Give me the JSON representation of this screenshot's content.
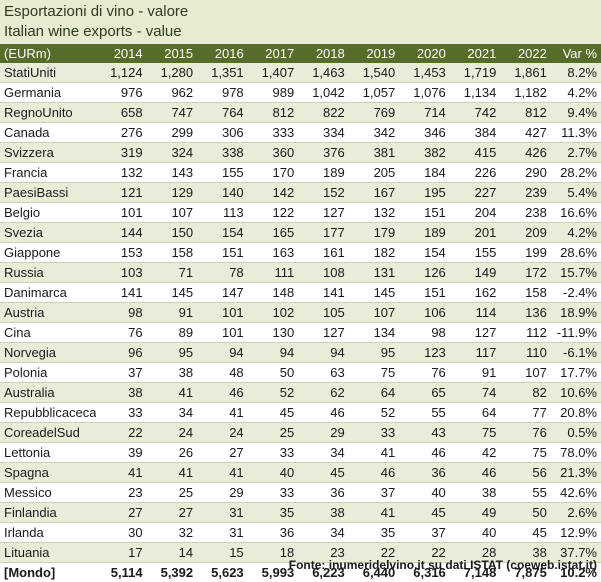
{
  "title": "Esportazioni di vino - valore",
  "subtitle": "Italian wine exports - value",
  "source": "Fonte: inumeridelvino.it su dati ISTAT (coeweb.istat.it)",
  "chart_data": {
    "type": "table",
    "columns": [
      "(EURm)",
      "2014",
      "2015",
      "2016",
      "2017",
      "2018",
      "2019",
      "2020",
      "2021",
      "2022",
      "Var %"
    ],
    "rows": [
      [
        "StatiUniti",
        "1,124",
        "1,280",
        "1,351",
        "1,407",
        "1,463",
        "1,540",
        "1,453",
        "1,719",
        "1,861",
        "8.2%"
      ],
      [
        "Germania",
        "976",
        "962",
        "978",
        "989",
        "1,042",
        "1,057",
        "1,076",
        "1,134",
        "1,182",
        "4.2%"
      ],
      [
        "RegnoUnito",
        "658",
        "747",
        "764",
        "812",
        "822",
        "769",
        "714",
        "742",
        "812",
        "9.4%"
      ],
      [
        "Canada",
        "276",
        "299",
        "306",
        "333",
        "334",
        "342",
        "346",
        "384",
        "427",
        "11.3%"
      ],
      [
        "Svizzera",
        "319",
        "324",
        "338",
        "360",
        "376",
        "381",
        "382",
        "415",
        "426",
        "2.7%"
      ],
      [
        "Francia",
        "132",
        "143",
        "155",
        "170",
        "189",
        "205",
        "184",
        "226",
        "290",
        "28.2%"
      ],
      [
        "PaesiBassi",
        "121",
        "129",
        "140",
        "142",
        "152",
        "167",
        "195",
        "227",
        "239",
        "5.4%"
      ],
      [
        "Belgio",
        "101",
        "107",
        "113",
        "122",
        "127",
        "132",
        "151",
        "204",
        "238",
        "16.6%"
      ],
      [
        "Svezia",
        "144",
        "150",
        "154",
        "165",
        "177",
        "179",
        "189",
        "201",
        "209",
        "4.2%"
      ],
      [
        "Giappone",
        "153",
        "158",
        "151",
        "163",
        "161",
        "182",
        "154",
        "155",
        "199",
        "28.6%"
      ],
      [
        "Russia",
        "103",
        "71",
        "78",
        "111",
        "108",
        "131",
        "126",
        "149",
        "172",
        "15.7%"
      ],
      [
        "Danimarca",
        "141",
        "145",
        "147",
        "148",
        "141",
        "145",
        "151",
        "162",
        "158",
        "-2.4%"
      ],
      [
        "Austria",
        "98",
        "91",
        "101",
        "102",
        "105",
        "107",
        "106",
        "114",
        "136",
        "18.9%"
      ],
      [
        "Cina",
        "76",
        "89",
        "101",
        "130",
        "127",
        "134",
        "98",
        "127",
        "112",
        "-11.9%"
      ],
      [
        "Norvegia",
        "96",
        "95",
        "94",
        "94",
        "94",
        "95",
        "123",
        "117",
        "110",
        "-6.1%"
      ],
      [
        "Polonia",
        "37",
        "38",
        "48",
        "50",
        "63",
        "75",
        "76",
        "91",
        "107",
        "17.7%"
      ],
      [
        "Australia",
        "38",
        "41",
        "46",
        "52",
        "62",
        "64",
        "65",
        "74",
        "82",
        "10.6%"
      ],
      [
        "Repubblicaceca",
        "33",
        "34",
        "41",
        "45",
        "46",
        "52",
        "55",
        "64",
        "77",
        "20.8%"
      ],
      [
        "CoreadelSud",
        "22",
        "24",
        "24",
        "25",
        "29",
        "33",
        "43",
        "75",
        "76",
        "0.5%"
      ],
      [
        "Lettonia",
        "39",
        "26",
        "27",
        "33",
        "34",
        "41",
        "46",
        "42",
        "75",
        "78.0%"
      ],
      [
        "Spagna",
        "41",
        "41",
        "41",
        "40",
        "45",
        "46",
        "36",
        "46",
        "56",
        "21.3%"
      ],
      [
        "Messico",
        "23",
        "25",
        "29",
        "33",
        "36",
        "37",
        "40",
        "38",
        "55",
        "42.6%"
      ],
      [
        "Finlandia",
        "27",
        "27",
        "31",
        "35",
        "38",
        "41",
        "45",
        "49",
        "50",
        "2.6%"
      ],
      [
        "Irlanda",
        "30",
        "32",
        "31",
        "36",
        "34",
        "35",
        "37",
        "40",
        "45",
        "12.9%"
      ],
      [
        "Lituania",
        "17",
        "14",
        "15",
        "18",
        "23",
        "22",
        "22",
        "28",
        "38",
        "37.7%"
      ]
    ],
    "total": [
      "[Mondo]",
      "5,114",
      "5,392",
      "5,623",
      "5,993",
      "6,223",
      "6,440",
      "6,316",
      "7,148",
      "7,875",
      "10.2%"
    ]
  },
  "colors": {
    "header_bg": "#566c2a",
    "band_bg": "#e8ecd8",
    "title_bg": "#e6ebd2"
  }
}
